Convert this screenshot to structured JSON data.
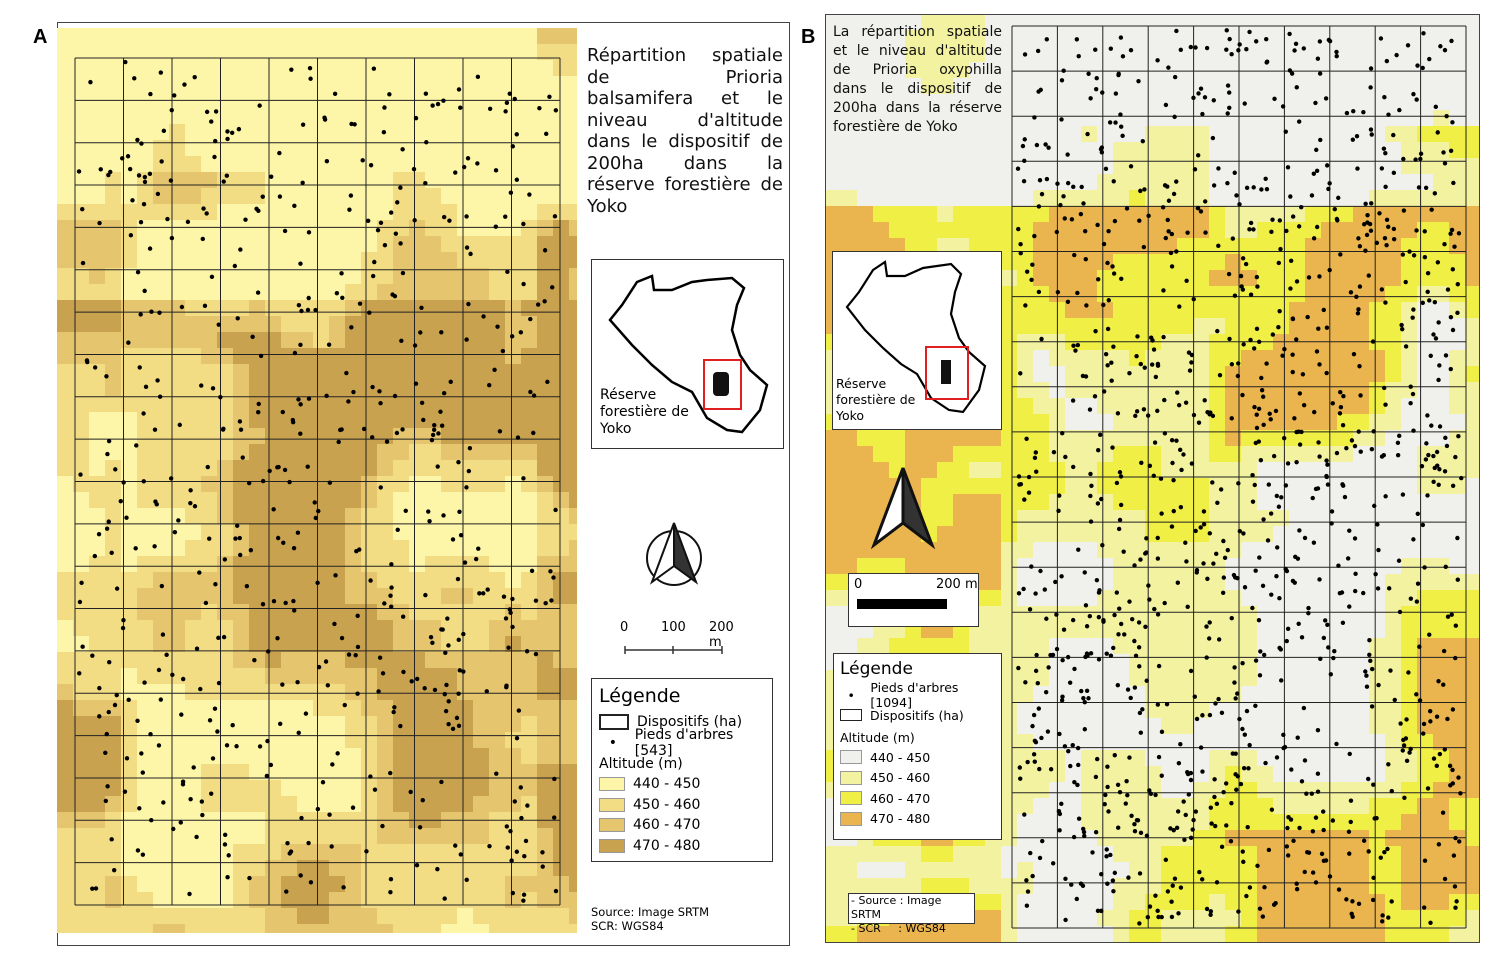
{
  "panelA": {
    "label": "A",
    "title": "Répartition spatiale de Prioria balsamifera et le niveau d'altitude dans le dispositif de 200ha dans la réserve forestière de Yoko",
    "inset_label": "Réserve forestière de Yoko",
    "scale": {
      "ticks": [
        "0",
        "100",
        "200 m"
      ]
    },
    "legend": {
      "title": "Légende",
      "plot_label": "Dispositifs (ha)",
      "tree_label": "Pieds d'arbres [543]",
      "altitude_title": "Altitude (m)",
      "classes": [
        {
          "label": "440 - 450",
          "color": "#fdf5a8"
        },
        {
          "label": "450 - 460",
          "color": "#f2dd85"
        },
        {
          "label": "460 - 470",
          "color": "#e5c66e"
        },
        {
          "label": "470 - 480",
          "color": "#c9a24f"
        }
      ]
    },
    "source": "Source: Image SRTM",
    "crs": "SCR: WGS84",
    "tree_count": 543
  },
  "panelB": {
    "label": "B",
    "title": "La répartition spatiale et le niveau d'altitude de Prioria oxyphilla dans le dispositif de 200ha dans la réserve forestière de Yoko",
    "inset_label": "Réserve forestière de Yoko",
    "scale": {
      "ticks": [
        "0",
        "200 m"
      ]
    },
    "legend": {
      "title": "Légende",
      "tree_label": "Pieds d'arbres [1094]",
      "plot_label": "Dispositifs (ha)",
      "altitude_title": "Altitude (m)",
      "classes": [
        {
          "label": "440 - 450",
          "color": "#f0f0ec"
        },
        {
          "label": "450 - 460",
          "color": "#f2f2a0"
        },
        {
          "label": "460 - 470",
          "color": "#f0ef45"
        },
        {
          "label": "470 - 480",
          "color": "#eab54f"
        }
      ]
    },
    "source": "- Source : Image SRTM",
    "crs": "- SCR     : WGS84",
    "tree_count": 1094
  },
  "colors": {
    "inset_highlight": "#e02020",
    "grid": "#222222",
    "points": "#000000"
  }
}
